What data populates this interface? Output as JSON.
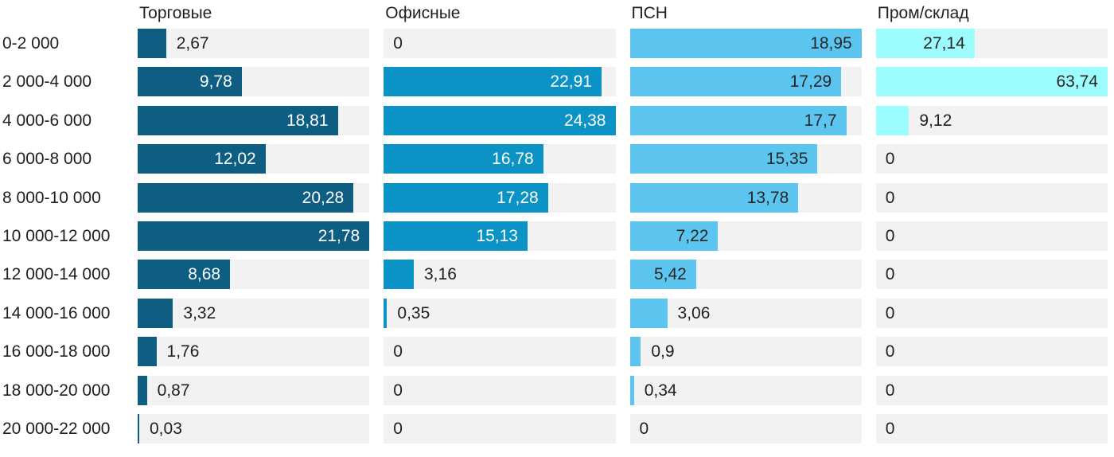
{
  "chart_data": {
    "type": "bar",
    "orientation": "horizontal",
    "title": "",
    "value_format": "comma-decimal",
    "grid": false,
    "legend_position": "column-headers-top",
    "categories": [
      "0-2 000",
      "2 000-4 000",
      "4 000-6 000",
      "6 000-8 000",
      "8 000-10 000",
      "10 000-12 000",
      "12 000-14 000",
      "14 000-16 000",
      "16 000-18 000",
      "18 000-20 000",
      "20 000-22 000"
    ],
    "series": [
      {
        "name": "Торговые",
        "color": "#0E5E84",
        "inside_label_color": "#FFFFFF",
        "axis_max": 21.78,
        "values": [
          2.67,
          9.78,
          18.81,
          12.02,
          20.28,
          21.78,
          8.68,
          3.32,
          1.76,
          0.87,
          0.03
        ],
        "labels": [
          "2,67",
          "9,78",
          "18,81",
          "12,02",
          "20,28",
          "21,78",
          "8,68",
          "3,32",
          "1,76",
          "0,87",
          "0,03"
        ]
      },
      {
        "name": "Офисные",
        "color": "#0A93C4",
        "inside_label_color": "#FFFFFF",
        "axis_max": 24.38,
        "values": [
          0,
          22.91,
          24.38,
          16.78,
          17.28,
          15.13,
          3.16,
          0.35,
          0,
          0,
          0
        ],
        "labels": [
          "0",
          "22,91",
          "24,38",
          "16,78",
          "17,28",
          "15,13",
          "3,16",
          "0,35",
          "0",
          "0",
          "0"
        ]
      },
      {
        "name": "ПСН",
        "color": "#5BC5F0",
        "inside_label_color": "#262626",
        "axis_max": 18.95,
        "values": [
          18.95,
          17.29,
          17.7,
          15.35,
          13.78,
          7.22,
          5.42,
          3.06,
          0.9,
          0.34,
          0
        ],
        "labels": [
          "18,95",
          "17,29",
          "17,7",
          "15,35",
          "13,78",
          "7,22",
          "5,42",
          "3,06",
          "0,9",
          "0,34",
          "0"
        ]
      },
      {
        "name": "Пром/склад",
        "color": "#9DFCFE",
        "inside_label_color": "#262626",
        "axis_max": 63.74,
        "values": [
          27.14,
          63.74,
          9.12,
          0,
          0,
          0,
          0,
          0,
          0,
          0,
          0
        ],
        "labels": [
          "27,14",
          "63,74",
          "9,12",
          "0",
          "0",
          "0",
          "0",
          "0",
          "0",
          "0",
          "0"
        ]
      }
    ],
    "colors": {
      "track_background": "#F2F2F3",
      "text": "#1F1F1F",
      "background": "#FFFFFF"
    }
  }
}
